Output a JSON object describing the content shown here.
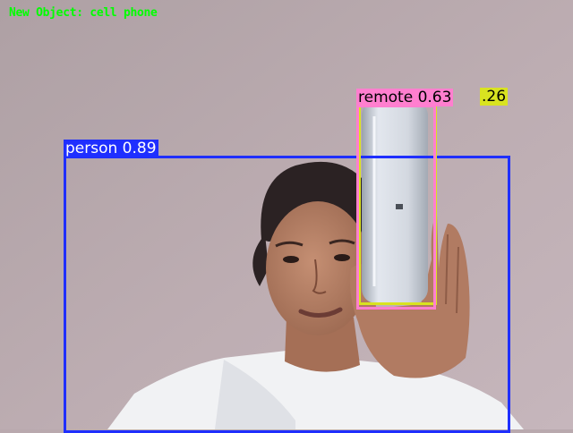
{
  "overlay": {
    "status_text": "New Object: cell phone",
    "status_color": "#00ff00"
  },
  "detections": [
    {
      "id": "person",
      "label": "person 0.89",
      "color": "#1f2fff",
      "text_color": "#ffffff"
    },
    {
      "id": "cellphone",
      "label": ".26",
      "color": "#d9e320",
      "text_color": "#000000"
    },
    {
      "id": "remote",
      "label": "remote 0.63",
      "color": "#ff7fcf",
      "text_color": "#000000"
    }
  ],
  "scene": {
    "subject": "person holding a white phone",
    "wall_color": "#b9a9ae",
    "shirt_color": "#f1f2f4",
    "skin_color": "#b78266",
    "hair_color": "#2b2223",
    "phone_color": "#d8dde6"
  }
}
